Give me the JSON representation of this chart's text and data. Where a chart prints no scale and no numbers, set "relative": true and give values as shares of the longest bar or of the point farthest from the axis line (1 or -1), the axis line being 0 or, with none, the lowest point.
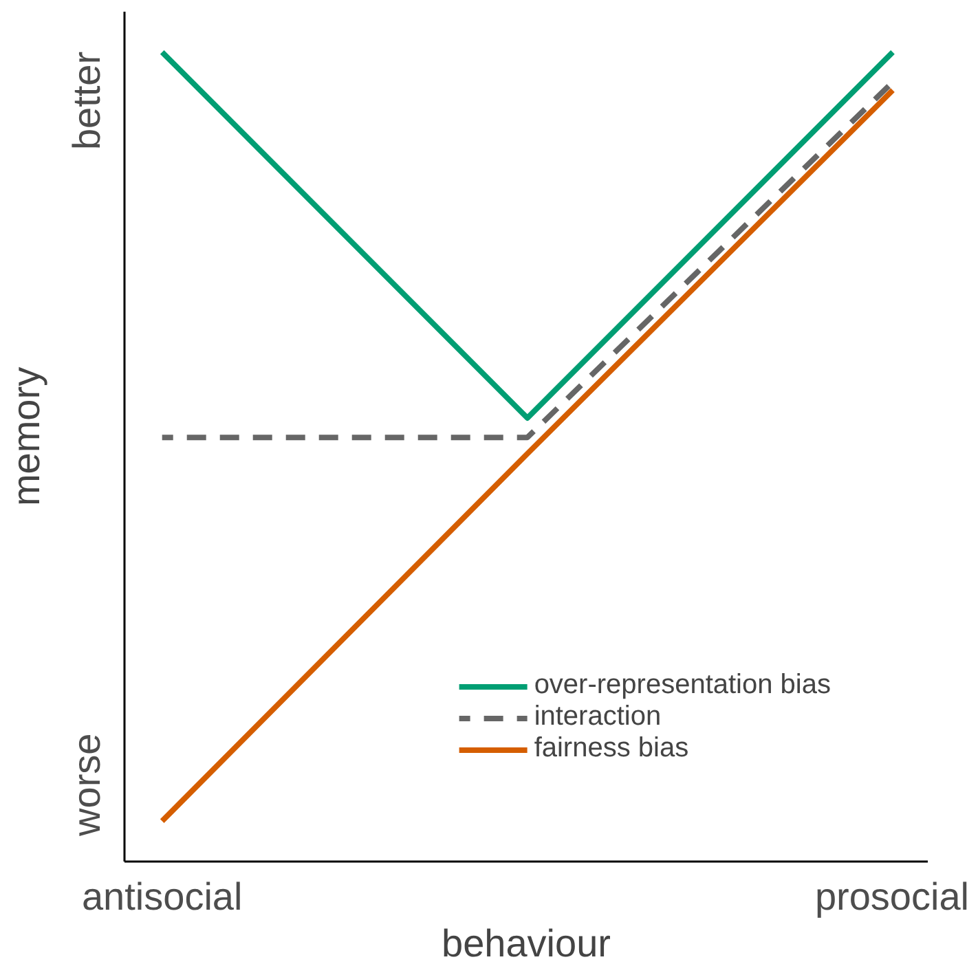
{
  "chart_data": {
    "type": "line",
    "relative": true,
    "xlabel": "behaviour",
    "ylabel": "memory",
    "categories": [
      "antisocial",
      null,
      "prosocial"
    ],
    "series": [
      {
        "name": "over-representation bias",
        "color": "#009e73",
        "values": [
          1,
          0.548,
          1
        ]
      },
      {
        "name": "interaction",
        "color": "#666666",
        "values": [
          0.524,
          0.524,
          0.963
        ],
        "line_style": "dashed"
      },
      {
        "name": "fairness bias",
        "color": "#d55e00",
        "values": [
          0.05,
          0.504,
          0.953
        ]
      }
    ],
    "annotations": [
      "worse",
      "better"
    ],
    "legend": "bottom right",
    "grid": false,
    "marker": "none",
    "line_style": "solid"
  }
}
